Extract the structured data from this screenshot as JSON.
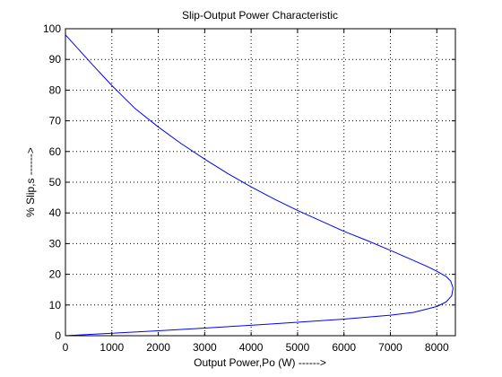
{
  "chart_data": {
    "type": "line",
    "title": "Slip-Output Power Characteristic",
    "xlabel": "Output Power,Po (W) ------>",
    "ylabel": "% Slip,s ------>",
    "xlim": [
      0,
      8400
    ],
    "ylim": [
      0,
      100
    ],
    "xticks": [
      0,
      1000,
      2000,
      3000,
      4000,
      5000,
      6000,
      7000,
      8000
    ],
    "yticks": [
      0,
      10,
      20,
      30,
      40,
      50,
      60,
      70,
      80,
      90,
      100
    ],
    "grid": true,
    "line_color": "#0000ff",
    "series": [
      {
        "points": [
          [
            0,
            98
          ],
          [
            300,
            93
          ],
          [
            600,
            88
          ],
          [
            1000,
            81.5
          ],
          [
            1500,
            74
          ],
          [
            2000,
            68
          ],
          [
            2500,
            62.5
          ],
          [
            3000,
            57.5
          ],
          [
            3500,
            52.8
          ],
          [
            4000,
            48.5
          ],
          [
            4500,
            44.5
          ],
          [
            5000,
            40.8
          ],
          [
            5500,
            37.4
          ],
          [
            6000,
            34
          ],
          [
            6500,
            31
          ],
          [
            7000,
            27.8
          ],
          [
            7500,
            24.5
          ],
          [
            7800,
            22.5
          ],
          [
            8000,
            21
          ],
          [
            8200,
            19.3
          ],
          [
            8300,
            17.8
          ],
          [
            8350,
            15.5
          ],
          [
            8320,
            13
          ],
          [
            8200,
            11
          ],
          [
            8000,
            9.5
          ],
          [
            7500,
            7.6
          ],
          [
            7000,
            6.7
          ],
          [
            6000,
            5.4
          ],
          [
            5000,
            4.4
          ],
          [
            4000,
            3.4
          ],
          [
            3000,
            2.5
          ],
          [
            2000,
            1.6
          ],
          [
            1000,
            0.8
          ],
          [
            500,
            0.4
          ],
          [
            0,
            0
          ]
        ]
      }
    ]
  }
}
